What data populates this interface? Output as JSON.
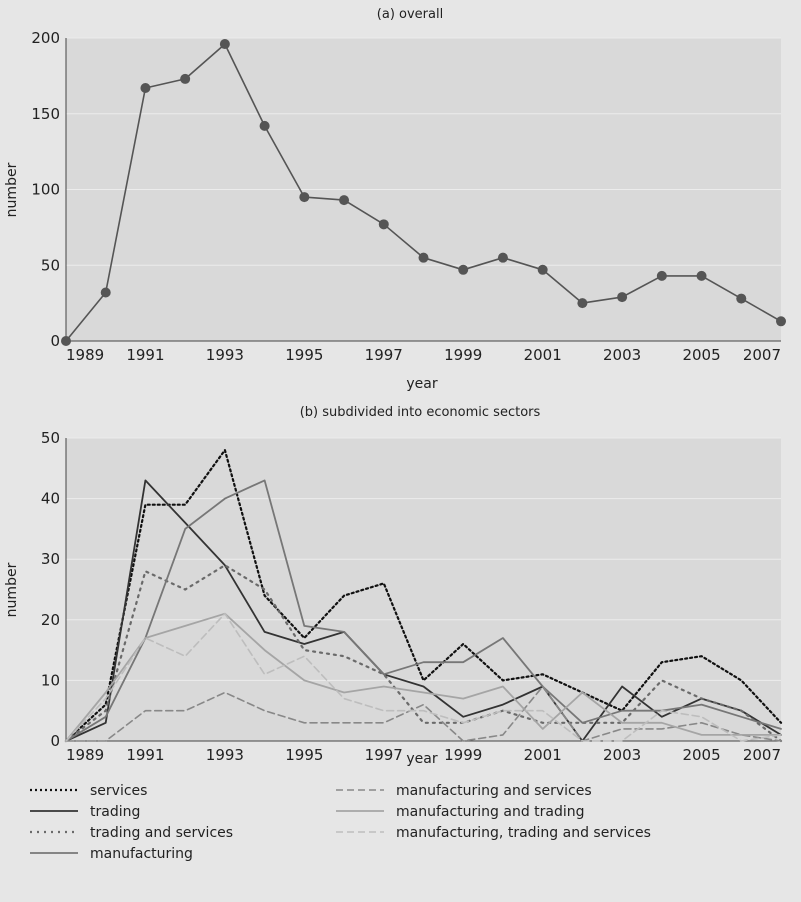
{
  "chart_data": [
    {
      "type": "line",
      "title": "(a) overall",
      "xlabel": "year",
      "ylabel": "number",
      "xlim": [
        1989,
        2007
      ],
      "ylim": [
        0,
        200
      ],
      "yticks": [
        0,
        50,
        100,
        150,
        200
      ],
      "xticks": [
        1989,
        1991,
        1993,
        1995,
        1997,
        1999,
        2001,
        2003,
        2005,
        2007
      ],
      "grid": true,
      "x": [
        1989,
        1990,
        1991,
        1992,
        1993,
        1994,
        1995,
        1996,
        1997,
        1998,
        1999,
        2000,
        2001,
        2002,
        2003,
        2004,
        2005,
        2006,
        2007
      ],
      "series": [
        {
          "color": "#555555",
          "marker": "circle",
          "values": [
            0,
            32,
            167,
            173,
            196,
            142,
            95,
            93,
            77,
            55,
            47,
            55,
            47,
            25,
            29,
            43,
            43,
            28,
            13
          ]
        }
      ]
    },
    {
      "type": "line",
      "title": "(b) subdivided into economic sectors",
      "xlabel": "year",
      "ylabel": "number",
      "xlim": [
        1989,
        2007
      ],
      "ylim": [
        0,
        50
      ],
      "yticks": [
        0,
        10,
        20,
        30,
        40,
        50
      ],
      "xticks": [
        1989,
        1991,
        1993,
        1995,
        1997,
        1999,
        2001,
        2003,
        2005,
        2007
      ],
      "grid": true,
      "legend": "bottom",
      "x": [
        1989,
        1990,
        1991,
        1992,
        1993,
        1994,
        1995,
        1996,
        1997,
        1998,
        1999,
        2000,
        2001,
        2002,
        2003,
        2004,
        2005,
        2006,
        2007
      ],
      "series": [
        {
          "name": "services",
          "color": "#111111",
          "dash": "2,3",
          "width": 2.2,
          "values": [
            0,
            6,
            39,
            39,
            48,
            24,
            17,
            24,
            26,
            10,
            16,
            10,
            11,
            8,
            5,
            13,
            14,
            10,
            3
          ]
        },
        {
          "name": "trading",
          "color": "#333333",
          "dash": "",
          "width": 1.8,
          "values": [
            0,
            3,
            43,
            36,
            29,
            18,
            16,
            18,
            11,
            9,
            4,
            6,
            9,
            0,
            9,
            4,
            7,
            5,
            1
          ]
        },
        {
          "name": "trading and services",
          "color": "#6a6a6a",
          "dash": "2,5",
          "width": 2.2,
          "values": [
            0,
            5,
            28,
            25,
            29,
            25,
            15,
            14,
            11,
            3,
            3,
            5,
            3,
            3,
            3,
            10,
            7,
            5,
            0
          ]
        },
        {
          "name": "manufacturing",
          "color": "#777777",
          "dash": "",
          "width": 1.8,
          "values": [
            0,
            4,
            17,
            35,
            40,
            43,
            19,
            18,
            11,
            13,
            13,
            17,
            9,
            3,
            5,
            5,
            6,
            4,
            2
          ]
        },
        {
          "name": "manufacturing and services",
          "color": "#888888",
          "dash": "7,4",
          "width": 1.6,
          "values": [
            0,
            0,
            5,
            5,
            8,
            5,
            3,
            3,
            3,
            6,
            0,
            1,
            9,
            0,
            2,
            2,
            3,
            1,
            0
          ]
        },
        {
          "name": "manufacturing and trading",
          "color": "#a5a5a5",
          "dash": "",
          "width": 1.8,
          "values": [
            0,
            8,
            17,
            19,
            21,
            15,
            10,
            8,
            9,
            8,
            7,
            9,
            2,
            8,
            3,
            3,
            1,
            1,
            1
          ]
        },
        {
          "name": "manufacturing, trading and services",
          "color": "#bdbdbd",
          "dash": "7,4",
          "width": 1.6,
          "values": [
            0,
            7,
            17,
            14,
            21,
            11,
            14,
            7,
            5,
            5,
            3,
            5,
            5,
            0,
            0,
            5,
            4,
            0,
            1
          ]
        }
      ]
    }
  ]
}
